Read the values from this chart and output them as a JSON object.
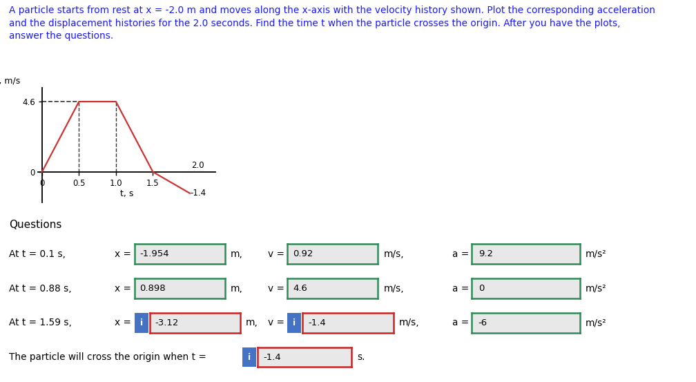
{
  "problem_text_line1": "A particle starts from rest at x = -2.0 m and moves along the x-axis with the velocity history shown. Plot the corresponding acceleration",
  "problem_text_line2": "and the displacement histories for the 2.0 seconds. Find the time t when the particle crosses the origin. After you have the plots,",
  "problem_text_line3": "answer the questions.",
  "plot_ylabel": "v, m/s",
  "plot_xlabel": "t, s",
  "velocity_points_x": [
    0,
    0.5,
    1.0,
    1.5,
    2.0
  ],
  "velocity_points_y": [
    0,
    4.6,
    4.6,
    0,
    -1.4
  ],
  "v_xlim": [
    -0.05,
    2.35
  ],
  "v_ylim": [
    -2.0,
    5.5
  ],
  "line_color": "#cc3333",
  "dashed_color": "#333333",
  "questions_title": "Questions",
  "rows": [
    {
      "label": "At t = 0.1 s,",
      "x_val": "-1.954",
      "v_val": "0.92",
      "a_val": "9.2",
      "x_box_color": "#2e8b57",
      "v_box_color": "#2e8b57",
      "a_box_color": "#2e8b57",
      "x_has_icon": false,
      "v_has_icon": false,
      "a_has_icon": false
    },
    {
      "label": "At t = 0.88 s,",
      "x_val": "0.898",
      "v_val": "4.6",
      "a_val": "0",
      "x_box_color": "#2e8b57",
      "v_box_color": "#2e8b57",
      "a_box_color": "#2e8b57",
      "x_has_icon": false,
      "v_has_icon": false,
      "a_has_icon": false
    },
    {
      "label": "At t = 1.59 s,",
      "x_val": "-3.12",
      "v_val": "-1.4",
      "a_val": "-6",
      "x_box_color": "#cc2222",
      "v_box_color": "#cc2222",
      "a_box_color": "#2e8b57",
      "x_has_icon": true,
      "v_has_icon": true,
      "a_has_icon": false
    }
  ],
  "crossing_label": "The particle will cross the origin when t = ",
  "crossing_val": "-1.4",
  "crossing_unit": "s.",
  "crossing_box_color": "#cc2222",
  "crossing_has_icon": true,
  "icon_color": "#4472c4",
  "bg_box_color": "#e8e8e8",
  "text_color": "#000000"
}
